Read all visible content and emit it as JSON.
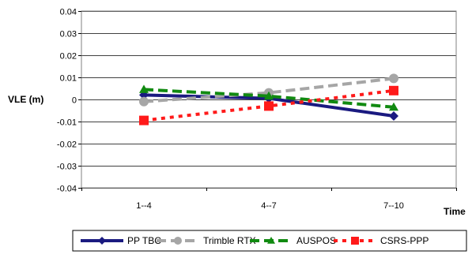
{
  "chart_data": {
    "type": "line",
    "title": "",
    "xlabel": "Time",
    "ylabel": "VLE (m)",
    "categories": [
      "1--4",
      "4--7",
      "7--10"
    ],
    "ylim": [
      -0.04,
      0.04
    ],
    "yticks": [
      "0.04",
      "0.03",
      "0.02",
      "0.01",
      "0",
      "-0.01",
      "-0.02",
      "-0.03",
      "-0.04"
    ],
    "ytick_values": [
      0.04,
      0.03,
      0.02,
      0.01,
      0,
      -0.01,
      -0.02,
      -0.03,
      -0.04
    ],
    "grid": true,
    "legend_position": "bottom",
    "series": [
      {
        "name": "PP TBC",
        "values": [
          0.002,
          0.0005,
          -0.0075
        ],
        "color": "#1a1a80",
        "dash": "solid",
        "marker": "diamond"
      },
      {
        "name": "Trimble RTX",
        "values": [
          -0.001,
          0.003,
          0.0095
        ],
        "color": "#a6a6a6",
        "dash": "dashed",
        "marker": "circle"
      },
      {
        "name": "AUSPOS",
        "values": [
          0.0045,
          0.0015,
          -0.0035
        ],
        "color": "#118a11",
        "dash": "dashed",
        "marker": "triangle"
      },
      {
        "name": "CSRS-PPP",
        "values": [
          -0.0095,
          -0.003,
          0.004
        ],
        "color": "#ff1a1a",
        "dash": "dotted",
        "marker": "square"
      }
    ]
  }
}
